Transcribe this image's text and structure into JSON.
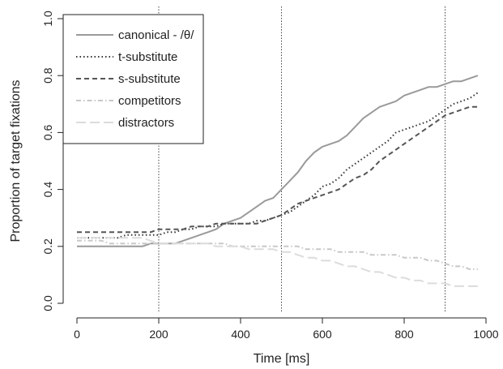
{
  "chart_data": {
    "type": "line",
    "title": "",
    "xlabel": "Time [ms]",
    "ylabel": "Proportion of target fixations",
    "xlim": [
      0,
      1000
    ],
    "ylim": [
      0,
      1.0
    ],
    "xticks": [
      "0",
      "200",
      "400",
      "600",
      "800",
      "1000"
    ],
    "yticks": [
      "0.0",
      "0.2",
      "0.4",
      "0.6",
      "0.8",
      "1.0"
    ],
    "xtick_values": [
      0,
      200,
      400,
      600,
      800,
      1000
    ],
    "ytick_values": [
      0.0,
      0.2,
      0.4,
      0.6,
      0.8,
      1.0
    ],
    "vlines": [
      200,
      500,
      900
    ],
    "grid": false,
    "legend_position": "top-left",
    "series": [
      {
        "name": "canonical - /θ/",
        "color": "#9a9a9a",
        "dash": "solid",
        "x": [
          0,
          20,
          40,
          60,
          80,
          100,
          120,
          140,
          160,
          180,
          200,
          220,
          240,
          260,
          280,
          300,
          320,
          340,
          360,
          380,
          400,
          420,
          440,
          460,
          480,
          500,
          520,
          540,
          560,
          580,
          600,
          620,
          640,
          660,
          680,
          700,
          720,
          740,
          760,
          780,
          800,
          820,
          840,
          860,
          880,
          900,
          920,
          940,
          960,
          980
        ],
        "y": [
          0.2,
          0.2,
          0.2,
          0.2,
          0.2,
          0.2,
          0.2,
          0.2,
          0.2,
          0.21,
          0.21,
          0.21,
          0.21,
          0.22,
          0.23,
          0.24,
          0.25,
          0.26,
          0.28,
          0.29,
          0.3,
          0.32,
          0.34,
          0.36,
          0.37,
          0.4,
          0.43,
          0.46,
          0.5,
          0.53,
          0.55,
          0.56,
          0.57,
          0.59,
          0.62,
          0.65,
          0.67,
          0.69,
          0.7,
          0.71,
          0.73,
          0.74,
          0.75,
          0.76,
          0.76,
          0.77,
          0.78,
          0.78,
          0.79,
          0.8
        ]
      },
      {
        "name": "t-substitute",
        "color": "#333333",
        "dash": "dotted",
        "x": [
          0,
          20,
          40,
          60,
          80,
          100,
          120,
          140,
          160,
          180,
          200,
          220,
          240,
          260,
          280,
          300,
          320,
          340,
          360,
          380,
          400,
          420,
          440,
          460,
          480,
          500,
          520,
          540,
          560,
          580,
          600,
          620,
          640,
          660,
          680,
          700,
          720,
          740,
          760,
          780,
          800,
          820,
          840,
          860,
          880,
          900,
          920,
          940,
          960,
          980
        ],
        "y": [
          0.23,
          0.23,
          0.23,
          0.23,
          0.23,
          0.23,
          0.24,
          0.24,
          0.24,
          0.24,
          0.24,
          0.25,
          0.25,
          0.26,
          0.26,
          0.27,
          0.27,
          0.27,
          0.28,
          0.28,
          0.28,
          0.28,
          0.29,
          0.29,
          0.3,
          0.31,
          0.32,
          0.34,
          0.36,
          0.38,
          0.41,
          0.42,
          0.44,
          0.47,
          0.49,
          0.51,
          0.53,
          0.55,
          0.57,
          0.6,
          0.61,
          0.62,
          0.63,
          0.64,
          0.66,
          0.68,
          0.7,
          0.71,
          0.72,
          0.74
        ]
      },
      {
        "name": "s-substitute",
        "color": "#555555",
        "dash": "dashed",
        "x": [
          0,
          20,
          40,
          60,
          80,
          100,
          120,
          140,
          160,
          180,
          200,
          220,
          240,
          260,
          280,
          300,
          320,
          340,
          360,
          380,
          400,
          420,
          440,
          460,
          480,
          500,
          520,
          540,
          560,
          580,
          600,
          620,
          640,
          660,
          680,
          700,
          720,
          740,
          760,
          780,
          800,
          820,
          840,
          860,
          880,
          900,
          920,
          940,
          960,
          980
        ],
        "y": [
          0.25,
          0.25,
          0.25,
          0.25,
          0.25,
          0.25,
          0.25,
          0.25,
          0.25,
          0.25,
          0.26,
          0.26,
          0.26,
          0.26,
          0.27,
          0.27,
          0.27,
          0.28,
          0.28,
          0.28,
          0.28,
          0.28,
          0.28,
          0.29,
          0.3,
          0.31,
          0.33,
          0.35,
          0.36,
          0.37,
          0.38,
          0.39,
          0.4,
          0.42,
          0.44,
          0.45,
          0.47,
          0.5,
          0.52,
          0.54,
          0.56,
          0.58,
          0.6,
          0.62,
          0.64,
          0.66,
          0.67,
          0.68,
          0.69,
          0.69
        ]
      },
      {
        "name": "competitors",
        "color": "#c8c8c8",
        "dash": "dashdot",
        "x": [
          0,
          20,
          40,
          60,
          80,
          100,
          120,
          140,
          160,
          180,
          200,
          220,
          240,
          260,
          280,
          300,
          320,
          340,
          360,
          380,
          400,
          420,
          440,
          460,
          480,
          500,
          520,
          540,
          560,
          580,
          600,
          620,
          640,
          660,
          680,
          700,
          720,
          740,
          760,
          780,
          800,
          820,
          840,
          860,
          880,
          900,
          920,
          940,
          960,
          980
        ],
        "y": [
          0.22,
          0.22,
          0.22,
          0.22,
          0.21,
          0.21,
          0.21,
          0.21,
          0.21,
          0.21,
          0.21,
          0.21,
          0.21,
          0.21,
          0.21,
          0.21,
          0.21,
          0.21,
          0.21,
          0.2,
          0.2,
          0.2,
          0.2,
          0.2,
          0.2,
          0.2,
          0.2,
          0.2,
          0.19,
          0.19,
          0.19,
          0.19,
          0.18,
          0.18,
          0.18,
          0.18,
          0.17,
          0.17,
          0.17,
          0.17,
          0.16,
          0.16,
          0.16,
          0.15,
          0.15,
          0.14,
          0.13,
          0.13,
          0.12,
          0.12
        ]
      },
      {
        "name": "distractors",
        "color": "#dcdcdc",
        "dash": "longdash",
        "x": [
          0,
          20,
          40,
          60,
          80,
          100,
          120,
          140,
          160,
          180,
          200,
          220,
          240,
          260,
          280,
          300,
          320,
          340,
          360,
          380,
          400,
          420,
          440,
          460,
          480,
          500,
          520,
          540,
          560,
          580,
          600,
          620,
          640,
          660,
          680,
          700,
          720,
          740,
          760,
          780,
          800,
          820,
          840,
          860,
          880,
          900,
          920,
          940,
          960,
          980
        ],
        "y": [
          0.23,
          0.23,
          0.23,
          0.23,
          0.23,
          0.23,
          0.23,
          0.23,
          0.23,
          0.22,
          0.21,
          0.21,
          0.21,
          0.21,
          0.21,
          0.21,
          0.21,
          0.2,
          0.2,
          0.2,
          0.2,
          0.19,
          0.19,
          0.19,
          0.19,
          0.18,
          0.18,
          0.17,
          0.16,
          0.16,
          0.15,
          0.15,
          0.14,
          0.13,
          0.13,
          0.12,
          0.11,
          0.11,
          0.1,
          0.09,
          0.09,
          0.08,
          0.08,
          0.07,
          0.07,
          0.07,
          0.06,
          0.06,
          0.06,
          0.06
        ]
      }
    ]
  }
}
